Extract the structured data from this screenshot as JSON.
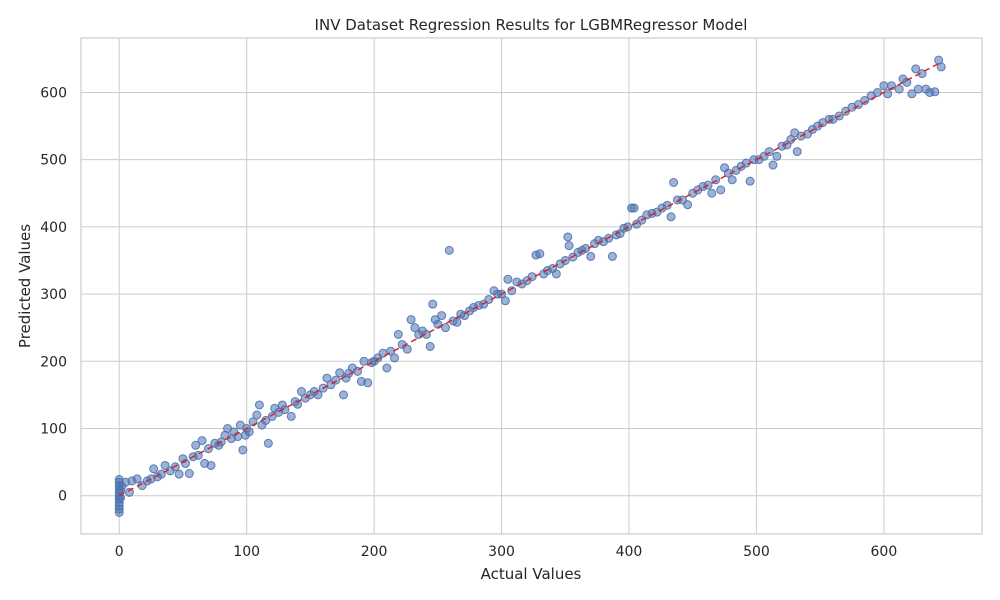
{
  "chart_data": {
    "type": "scatter",
    "title": "INV Dataset Regression Results for LGBMRegressor Model",
    "xlabel": "Actual Values",
    "ylabel": "Predicted Values",
    "xlim": [
      -30,
      677
    ],
    "ylim": [
      -57,
      681
    ],
    "xticks": [
      0,
      100,
      200,
      300,
      400,
      500,
      600
    ],
    "yticks": [
      0,
      100,
      200,
      300,
      400,
      500,
      600
    ],
    "grid": true,
    "point_color": "#4c72b0",
    "reference_line": {
      "style": "dashed",
      "color": "#d62728",
      "x": [
        0,
        645
      ],
      "y": [
        0,
        645
      ]
    },
    "series": [
      {
        "points": [
          [
            0,
            -25
          ],
          [
            0,
            -20
          ],
          [
            0,
            -15
          ],
          [
            0,
            -10
          ],
          [
            0,
            -5
          ],
          [
            0,
            0
          ],
          [
            0,
            5
          ],
          [
            0,
            10
          ],
          [
            0,
            15
          ],
          [
            0,
            20
          ],
          [
            0,
            24
          ],
          [
            1,
            -3
          ],
          [
            1,
            8
          ],
          [
            2,
            14
          ],
          [
            5,
            20
          ],
          [
            8,
            5
          ],
          [
            10,
            22
          ],
          [
            14,
            25
          ],
          [
            18,
            15
          ],
          [
            22,
            22
          ],
          [
            25,
            25
          ],
          [
            27,
            40
          ],
          [
            30,
            28
          ],
          [
            33,
            32
          ],
          [
            36,
            45
          ],
          [
            40,
            37
          ],
          [
            44,
            43
          ],
          [
            47,
            32
          ],
          [
            50,
            55
          ],
          [
            52,
            48
          ],
          [
            55,
            33
          ],
          [
            58,
            58
          ],
          [
            60,
            75
          ],
          [
            62,
            60
          ],
          [
            65,
            82
          ],
          [
            67,
            48
          ],
          [
            70,
            70
          ],
          [
            72,
            45
          ],
          [
            75,
            78
          ],
          [
            78,
            75
          ],
          [
            80,
            80
          ],
          [
            83,
            90
          ],
          [
            85,
            100
          ],
          [
            88,
            85
          ],
          [
            90,
            95
          ],
          [
            93,
            88
          ],
          [
            95,
            105
          ],
          [
            97,
            68
          ],
          [
            99,
            90
          ],
          [
            100,
            100
          ],
          [
            102,
            95
          ],
          [
            105,
            110
          ],
          [
            108,
            120
          ],
          [
            110,
            135
          ],
          [
            112,
            105
          ],
          [
            115,
            112
          ],
          [
            117,
            78
          ],
          [
            120,
            118
          ],
          [
            122,
            130
          ],
          [
            125,
            124
          ],
          [
            128,
            135
          ],
          [
            130,
            128
          ],
          [
            135,
            118
          ],
          [
            138,
            140
          ],
          [
            140,
            136
          ],
          [
            143,
            155
          ],
          [
            146,
            145
          ],
          [
            150,
            150
          ],
          [
            153,
            155
          ],
          [
            156,
            150
          ],
          [
            160,
            160
          ],
          [
            163,
            175
          ],
          [
            166,
            165
          ],
          [
            170,
            172
          ],
          [
            173,
            183
          ],
          [
            176,
            150
          ],
          [
            178,
            175
          ],
          [
            180,
            182
          ],
          [
            183,
            190
          ],
          [
            187,
            185
          ],
          [
            190,
            170
          ],
          [
            192,
            200
          ],
          [
            195,
            168
          ],
          [
            198,
            198
          ],
          [
            200,
            200
          ],
          [
            203,
            205
          ],
          [
            207,
            212
          ],
          [
            210,
            190
          ],
          [
            213,
            215
          ],
          [
            216,
            205
          ],
          [
            219,
            240
          ],
          [
            222,
            225
          ],
          [
            226,
            218
          ],
          [
            229,
            262
          ],
          [
            232,
            250
          ],
          [
            235,
            240
          ],
          [
            238,
            245
          ],
          [
            241,
            240
          ],
          [
            244,
            222
          ],
          [
            246,
            285
          ],
          [
            248,
            262
          ],
          [
            250,
            255
          ],
          [
            253,
            268
          ],
          [
            256,
            250
          ],
          [
            259,
            365
          ],
          [
            262,
            260
          ],
          [
            265,
            258
          ],
          [
            268,
            270
          ],
          [
            271,
            268
          ],
          [
            275,
            275
          ],
          [
            278,
            280
          ],
          [
            282,
            283
          ],
          [
            286,
            285
          ],
          [
            290,
            292
          ],
          [
            294,
            305
          ],
          [
            297,
            300
          ],
          [
            300,
            300
          ],
          [
            303,
            290
          ],
          [
            305,
            322
          ],
          [
            308,
            305
          ],
          [
            312,
            318
          ],
          [
            316,
            315
          ],
          [
            320,
            320
          ],
          [
            324,
            326
          ],
          [
            327,
            358
          ],
          [
            330,
            360
          ],
          [
            333,
            330
          ],
          [
            336,
            335
          ],
          [
            340,
            338
          ],
          [
            343,
            330
          ],
          [
            346,
            345
          ],
          [
            350,
            350
          ],
          [
            352,
            385
          ],
          [
            353,
            372
          ],
          [
            356,
            355
          ],
          [
            360,
            362
          ],
          [
            363,
            365
          ],
          [
            366,
            368
          ],
          [
            370,
            356
          ],
          [
            373,
            375
          ],
          [
            376,
            380
          ],
          [
            380,
            378
          ],
          [
            384,
            383
          ],
          [
            387,
            356
          ],
          [
            390,
            388
          ],
          [
            393,
            390
          ],
          [
            396,
            398
          ],
          [
            399,
            400
          ],
          [
            402,
            428
          ],
          [
            404,
            428
          ],
          [
            406,
            404
          ],
          [
            410,
            410
          ],
          [
            414,
            418
          ],
          [
            418,
            420
          ],
          [
            422,
            422
          ],
          [
            426,
            428
          ],
          [
            430,
            432
          ],
          [
            433,
            415
          ],
          [
            435,
            466
          ],
          [
            438,
            440
          ],
          [
            442,
            440
          ],
          [
            446,
            433
          ],
          [
            450,
            450
          ],
          [
            454,
            455
          ],
          [
            458,
            460
          ],
          [
            462,
            462
          ],
          [
            465,
            450
          ],
          [
            468,
            470
          ],
          [
            472,
            455
          ],
          [
            475,
            488
          ],
          [
            478,
            480
          ],
          [
            481,
            470
          ],
          [
            484,
            484
          ],
          [
            488,
            490
          ],
          [
            492,
            495
          ],
          [
            495,
            468
          ],
          [
            498,
            500
          ],
          [
            502,
            500
          ],
          [
            506,
            505
          ],
          [
            510,
            512
          ],
          [
            513,
            492
          ],
          [
            516,
            505
          ],
          [
            520,
            520
          ],
          [
            524,
            522
          ],
          [
            527,
            530
          ],
          [
            530,
            540
          ],
          [
            532,
            512
          ],
          [
            535,
            535
          ],
          [
            540,
            538
          ],
          [
            544,
            545
          ],
          [
            548,
            550
          ],
          [
            552,
            555
          ],
          [
            557,
            560
          ],
          [
            560,
            560
          ],
          [
            565,
            565
          ],
          [
            570,
            572
          ],
          [
            575,
            578
          ],
          [
            580,
            582
          ],
          [
            585,
            588
          ],
          [
            590,
            595
          ],
          [
            595,
            600
          ],
          [
            600,
            610
          ],
          [
            603,
            598
          ],
          [
            606,
            610
          ],
          [
            612,
            605
          ],
          [
            615,
            620
          ],
          [
            618,
            615
          ],
          [
            622,
            598
          ],
          [
            625,
            635
          ],
          [
            627,
            605
          ],
          [
            630,
            628
          ],
          [
            633,
            605
          ],
          [
            636,
            600
          ],
          [
            640,
            601
          ],
          [
            643,
            648
          ],
          [
            645,
            638
          ]
        ]
      }
    ]
  }
}
